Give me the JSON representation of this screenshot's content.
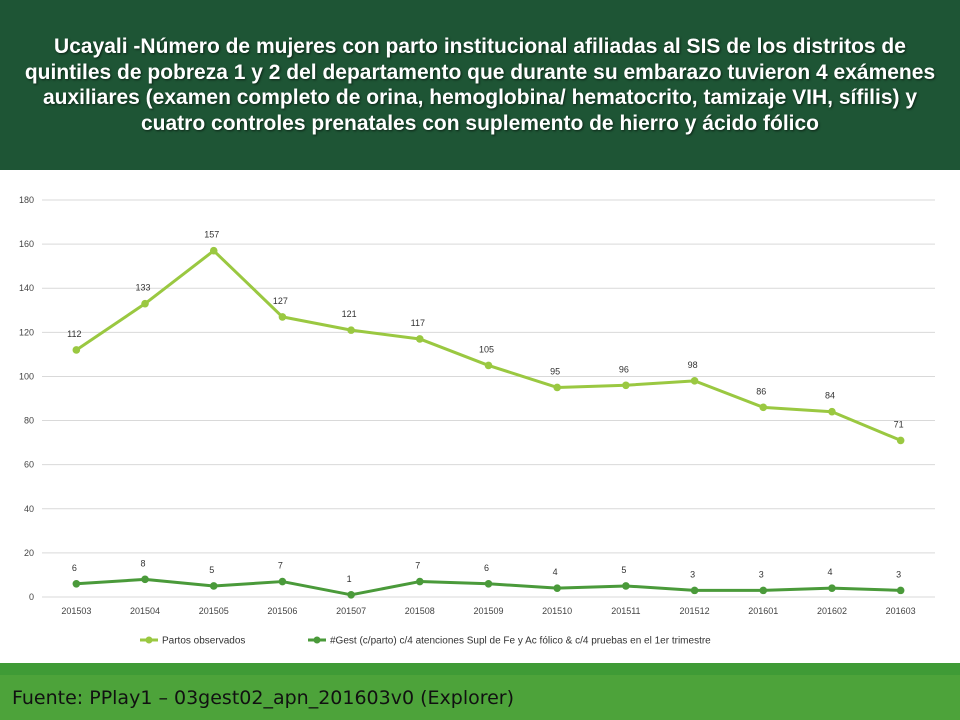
{
  "header": {
    "title": "Ucayali -Número de mujeres con parto institucional afiliadas al SIS de los distritos de quintiles de pobreza 1 y 2 del departamento que durante su embarazo tuvieron 4 exámenes auxiliares (examen completo de orina, hemoglobina/ hematocrito, tamizaje VIH, sífilis) y cuatro controles prenatales con suplemento de hierro y ácido fólico"
  },
  "footer": {
    "source": "Fuente: PPlay1 – 03gest02_apn_201603v0 (Explorer)"
  },
  "colors": {
    "header_bg": "#1e5535",
    "footer_bg": "#4da33a",
    "series_light": "#9ac841",
    "series_dark": "#4a9a3a",
    "grid": "#d9d9d9"
  },
  "chart_data": {
    "type": "line",
    "categories": [
      "201503",
      "201504",
      "201505",
      "201506",
      "201507",
      "201508",
      "201509",
      "201510",
      "201511",
      "201512",
      "201601",
      "201602",
      "201603"
    ],
    "series": [
      {
        "name": "Partos observados",
        "color": "#9ac841",
        "values": [
          112,
          133,
          157,
          127,
          121,
          117,
          105,
          95,
          96,
          98,
          86,
          84,
          71
        ]
      },
      {
        "name": "#Gest (c/parto) c/4 atenciones Supl de Fe y Ac fólico & c/4 pruebas en el 1er trimestre",
        "color": "#4a9a3a",
        "values": [
          6,
          8,
          5,
          7,
          1,
          7,
          6,
          4,
          5,
          3,
          3,
          4,
          3
        ]
      }
    ],
    "ylim": [
      0,
      180
    ],
    "yticks": [
      0,
      20,
      40,
      60,
      80,
      100,
      120,
      140,
      160,
      180
    ],
    "grid": true,
    "legend": "bottom"
  }
}
